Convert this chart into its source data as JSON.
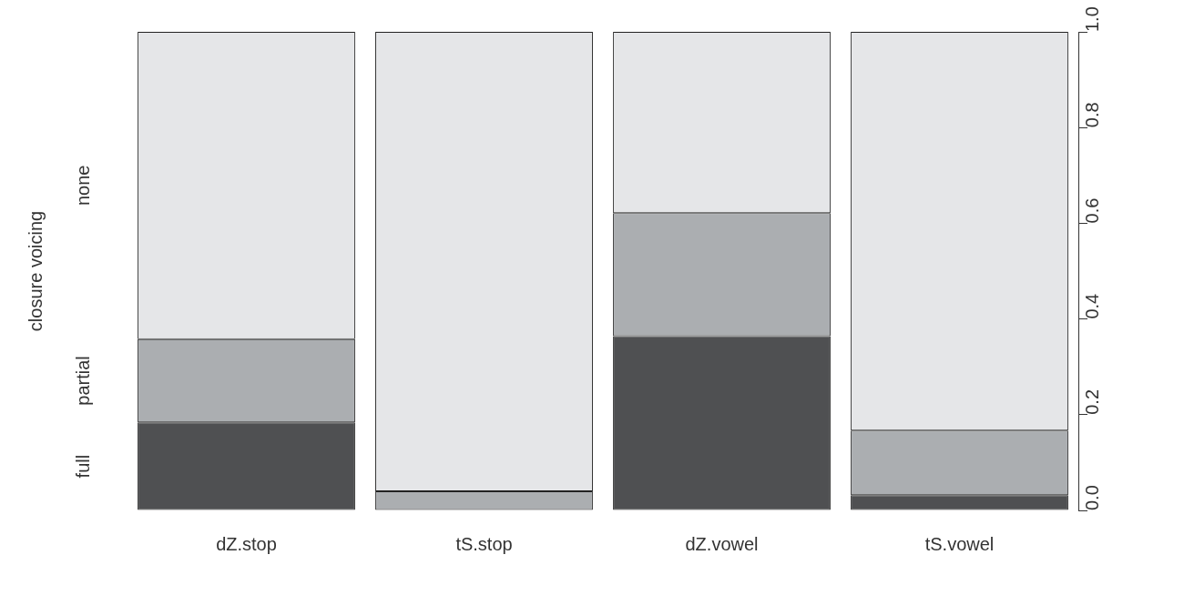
{
  "chart_data": {
    "type": "bar",
    "stacked": true,
    "ylabel": "closure voicing",
    "categories": [
      "dZ.stop",
      "tS.stop",
      "dZ.vowel",
      "tS.vowel"
    ],
    "series": [
      {
        "name": "full",
        "color": "#4f5052",
        "values": [
          0.184,
          0,
          0.364,
          0.032
        ]
      },
      {
        "name": "partial",
        "color": "#abaeb1",
        "values": [
          0.174,
          0.04,
          0.257,
          0.135
        ]
      },
      {
        "name": "none",
        "color": "#e5e6e8",
        "values": [
          0.642,
          0.96,
          0.379,
          0.833
        ]
      }
    ],
    "ylim": [
      0,
      1
    ],
    "yticks": [
      {
        "value": 0,
        "label": "0.0"
      },
      {
        "value": 0.2,
        "label": "0.2"
      },
      {
        "value": 0.4,
        "label": "0.4"
      },
      {
        "value": 0.6,
        "label": "0.6"
      },
      {
        "value": 0.8,
        "label": "0.8"
      },
      {
        "value": 1,
        "label": "1.0"
      }
    ],
    "grid": false,
    "legend": false
  }
}
